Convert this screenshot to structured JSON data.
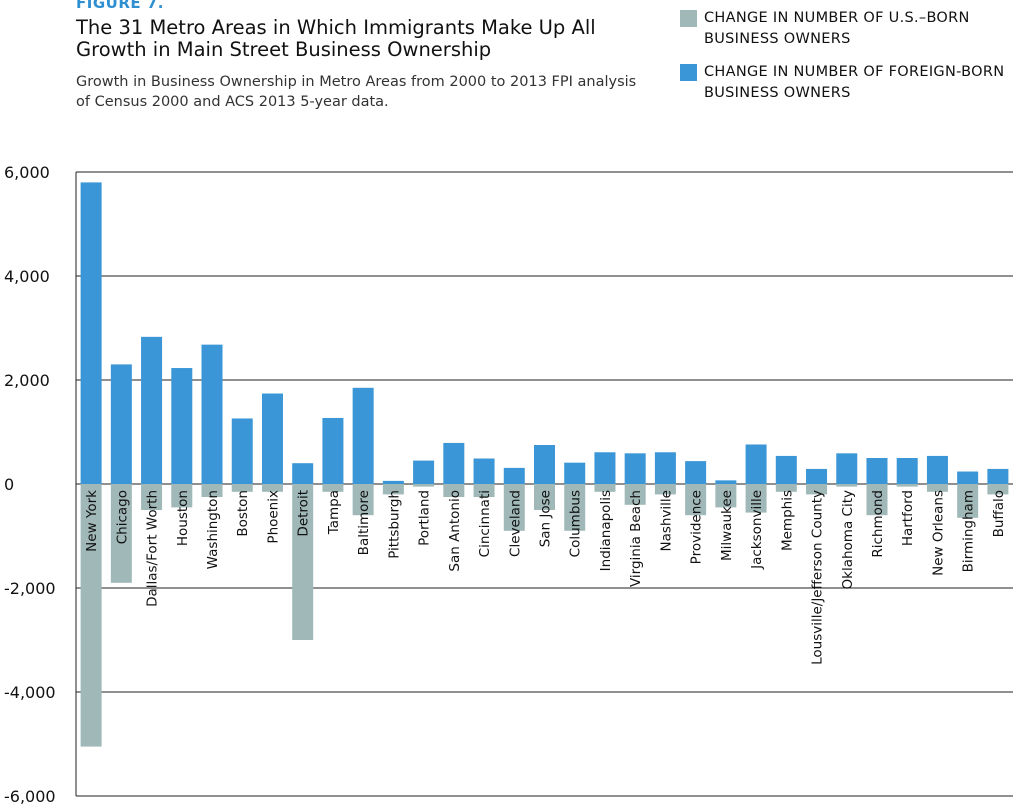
{
  "figure_label": "FIGURE 7.",
  "title": "The 31 Metro Areas in Which Immigrants Make Up All Growth in Main Street Business Ownership",
  "subtitle": "Growth in Business Ownership in Metro Areas from 2000 to 2013 FPI analysis of Census 2000 and ACS 2013 5-year data.",
  "colors": {
    "us_born": "#a0b8b8",
    "foreign_born": "#3a96d6"
  },
  "chart_data": {
    "type": "bar",
    "title": "The 31 Metro Areas in Which Immigrants Make Up All Growth in Main Street Business Ownership",
    "ylim": [
      -6000,
      6000
    ],
    "yticks": [
      6000,
      4000,
      2000,
      0,
      -2000,
      -4000,
      -6000
    ],
    "ytick_labels": [
      "6,000",
      "4,000",
      "2,000",
      "0",
      "-2,000",
      "-4,000",
      "-6,000"
    ],
    "grid": true,
    "legend_position": "top-right",
    "categories": [
      "New York",
      "Chicago",
      "Dallas/Fort Worth",
      "Houston",
      "Washington",
      "Boston",
      "Phoenix",
      "Detroit",
      "Tampa",
      "Baltimore",
      "Pittsburgh",
      "Portland",
      "San Antonio",
      "Cincinnati",
      "Cleveland",
      "San Jose",
      "Columbus",
      "Indianapolis",
      "Virginia Beach",
      "Nashville",
      "Providence",
      "Milwaukee",
      "Jacksonville",
      "Memphis",
      "Lousville/Jefferson County",
      "Oklahoma City",
      "Richmond",
      "Hartford",
      "New Orleans",
      "Birmingham",
      "Buffalo"
    ],
    "series": [
      {
        "name": "CHANGE IN NUMBER OF U.S.–BORN BUSINESS OWNERS",
        "values": [
          -5050,
          -1900,
          -500,
          -450,
          -250,
          -150,
          -150,
          -3000,
          -150,
          -600,
          -200,
          -50,
          -250,
          -250,
          -900,
          -500,
          -900,
          -150,
          -400,
          -200,
          -600,
          -450,
          -550,
          -150,
          -200,
          -50,
          -600,
          -50,
          -150,
          -650,
          -200
        ]
      },
      {
        "name": "CHANGE IN NUMBER OF FOREIGN-BORN BUSINESS OWNERS",
        "values": [
          5800,
          2300,
          2830,
          2230,
          2680,
          1260,
          1740,
          400,
          1270,
          1850,
          60,
          450,
          790,
          490,
          310,
          750,
          410,
          610,
          590,
          610,
          440,
          70,
          760,
          540,
          290,
          590,
          500,
          500,
          540,
          240,
          290
        ]
      }
    ]
  }
}
